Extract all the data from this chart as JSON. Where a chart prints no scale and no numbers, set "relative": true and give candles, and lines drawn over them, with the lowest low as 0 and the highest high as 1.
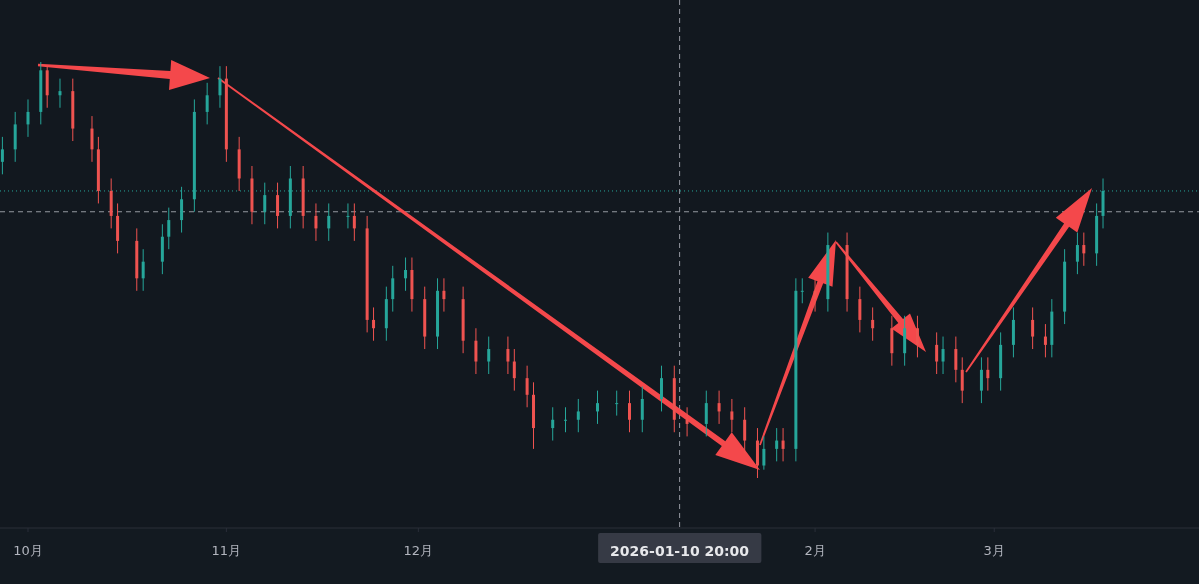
{
  "chart_data": {
    "type": "candlestick",
    "relative": true,
    "x": [
      "2025-09-27",
      "2025-09-29",
      "2025-10-01",
      "2025-10-03",
      "2025-10-04",
      "2025-10-06",
      "2025-10-08",
      "2025-10-11",
      "2025-10-12",
      "2025-10-14",
      "2025-10-15",
      "2025-10-18",
      "2025-10-19",
      "2025-10-22",
      "2025-10-23",
      "2025-10-25",
      "2025-10-27",
      "2025-10-29",
      "2025-10-31",
      "2025-11-01",
      "2025-11-03",
      "2025-11-05",
      "2025-11-07",
      "2025-11-09",
      "2025-11-11",
      "2025-11-13",
      "2025-11-15",
      "2025-11-17",
      "2025-11-20",
      "2025-11-21",
      "2025-11-23",
      "2025-11-24",
      "2025-11-26",
      "2025-11-27",
      "2025-11-29",
      "2025-11-30",
      "2025-12-02",
      "2025-12-04",
      "2025-12-05",
      "2025-12-08",
      "2025-12-10",
      "2025-12-12",
      "2025-12-15",
      "2025-12-16",
      "2025-12-18",
      "2025-12-19",
      "2025-12-22",
      "2025-12-24",
      "2025-12-26",
      "2025-12-29",
      "2026-01-01",
      "2026-01-03",
      "2026-01-05",
      "2026-01-08",
      "2026-01-10",
      "2026-01-12",
      "2026-01-15",
      "2026-01-17",
      "2026-01-19",
      "2026-01-21",
      "2026-01-23",
      "2026-01-24",
      "2026-01-26",
      "2026-01-27",
      "2026-01-29",
      "2026-01-30",
      "2026-02-01",
      "2026-02-03",
      "2026-02-06",
      "2026-02-08",
      "2026-02-10",
      "2026-02-13",
      "2026-02-15",
      "2026-02-17",
      "2026-02-20",
      "2026-02-21",
      "2026-02-23",
      "2026-02-24",
      "2026-02-27",
      "2026-02-28",
      "2026-03-02",
      "2026-03-04",
      "2026-03-07",
      "2026-03-09",
      "2026-03-10",
      "2026-03-12",
      "2026-03-14",
      "2026-03-15",
      "2026-03-17",
      "2026-03-18"
    ],
    "ohlc": [
      [
        0.76,
        0.82,
        0.73,
        0.79
      ],
      [
        0.79,
        0.88,
        0.76,
        0.85
      ],
      [
        0.85,
        0.91,
        0.82,
        0.88
      ],
      [
        0.88,
        1.0,
        0.85,
        0.98
      ],
      [
        0.98,
        0.99,
        0.89,
        0.92
      ],
      [
        0.92,
        0.96,
        0.89,
        0.93
      ],
      [
        0.93,
        0.96,
        0.81,
        0.84
      ],
      [
        0.84,
        0.87,
        0.76,
        0.79
      ],
      [
        0.79,
        0.82,
        0.66,
        0.69
      ],
      [
        0.69,
        0.72,
        0.6,
        0.63
      ],
      [
        0.63,
        0.66,
        0.54,
        0.57
      ],
      [
        0.57,
        0.6,
        0.45,
        0.48
      ],
      [
        0.48,
        0.55,
        0.45,
        0.52
      ],
      [
        0.52,
        0.61,
        0.49,
        0.58
      ],
      [
        0.58,
        0.65,
        0.55,
        0.62
      ],
      [
        0.62,
        0.7,
        0.59,
        0.67
      ],
      [
        0.67,
        0.91,
        0.64,
        0.88
      ],
      [
        0.88,
        0.95,
        0.85,
        0.92
      ],
      [
        0.92,
        0.99,
        0.89,
        0.96
      ],
      [
        0.96,
        0.99,
        0.76,
        0.79
      ],
      [
        0.79,
        0.82,
        0.69,
        0.72
      ],
      [
        0.72,
        0.75,
        0.61,
        0.64
      ],
      [
        0.64,
        0.71,
        0.61,
        0.68
      ],
      [
        0.68,
        0.71,
        0.6,
        0.63
      ],
      [
        0.63,
        0.75,
        0.6,
        0.72
      ],
      [
        0.72,
        0.75,
        0.6,
        0.63
      ],
      [
        0.63,
        0.66,
        0.57,
        0.6
      ],
      [
        0.6,
        0.66,
        0.57,
        0.63
      ],
      [
        0.63,
        0.66,
        0.6,
        0.63
      ],
      [
        0.63,
        0.66,
        0.57,
        0.6
      ],
      [
        0.6,
        0.63,
        0.35,
        0.38
      ],
      [
        0.38,
        0.41,
        0.33,
        0.36
      ],
      [
        0.36,
        0.46,
        0.33,
        0.43
      ],
      [
        0.43,
        0.51,
        0.4,
        0.48
      ],
      [
        0.48,
        0.53,
        0.45,
        0.5
      ],
      [
        0.5,
        0.53,
        0.4,
        0.43
      ],
      [
        0.43,
        0.46,
        0.31,
        0.34
      ],
      [
        0.34,
        0.48,
        0.31,
        0.45
      ],
      [
        0.45,
        0.48,
        0.4,
        0.43
      ],
      [
        0.43,
        0.46,
        0.3,
        0.33
      ],
      [
        0.33,
        0.36,
        0.25,
        0.28
      ],
      [
        0.28,
        0.34,
        0.25,
        0.31
      ],
      [
        0.31,
        0.34,
        0.25,
        0.28
      ],
      [
        0.28,
        0.31,
        0.21,
        0.24
      ],
      [
        0.24,
        0.27,
        0.17,
        0.2
      ],
      [
        0.2,
        0.23,
        0.07,
        0.12
      ],
      [
        0.12,
        0.17,
        0.09,
        0.14
      ],
      [
        0.14,
        0.17,
        0.11,
        0.14
      ],
      [
        0.14,
        0.19,
        0.11,
        0.16
      ],
      [
        0.16,
        0.21,
        0.13,
        0.18
      ],
      [
        0.18,
        0.21,
        0.15,
        0.18
      ],
      [
        0.18,
        0.21,
        0.11,
        0.14
      ],
      [
        0.14,
        0.22,
        0.11,
        0.19
      ],
      [
        0.19,
        0.27,
        0.16,
        0.24
      ],
      [
        0.24,
        0.27,
        0.11,
        0.14
      ],
      [
        0.14,
        0.17,
        0.1,
        0.13
      ],
      [
        0.13,
        0.21,
        0.1,
        0.18
      ],
      [
        0.18,
        0.21,
        0.13,
        0.16
      ],
      [
        0.16,
        0.19,
        0.11,
        0.14
      ],
      [
        0.14,
        0.17,
        0.06,
        0.09
      ],
      [
        0.09,
        0.12,
        0.0,
        0.03
      ],
      [
        0.03,
        0.1,
        0.02,
        0.07
      ],
      [
        0.07,
        0.12,
        0.04,
        0.09
      ],
      [
        0.09,
        0.12,
        0.04,
        0.07
      ],
      [
        0.07,
        0.48,
        0.04,
        0.45
      ],
      [
        0.45,
        0.48,
        0.42,
        0.45
      ],
      [
        0.45,
        0.48,
        0.4,
        0.43
      ],
      [
        0.43,
        0.59,
        0.4,
        0.56
      ],
      [
        0.56,
        0.59,
        0.4,
        0.43
      ],
      [
        0.43,
        0.46,
        0.35,
        0.38
      ],
      [
        0.38,
        0.41,
        0.33,
        0.36
      ],
      [
        0.36,
        0.39,
        0.27,
        0.3
      ],
      [
        0.3,
        0.39,
        0.27,
        0.36
      ],
      [
        0.36,
        0.39,
        0.29,
        0.32
      ],
      [
        0.32,
        0.35,
        0.25,
        0.28
      ],
      [
        0.28,
        0.34,
        0.25,
        0.31
      ],
      [
        0.31,
        0.34,
        0.23,
        0.26
      ],
      [
        0.26,
        0.29,
        0.18,
        0.21
      ],
      [
        0.21,
        0.29,
        0.18,
        0.26
      ],
      [
        0.26,
        0.29,
        0.21,
        0.24
      ],
      [
        0.24,
        0.35,
        0.21,
        0.32
      ],
      [
        0.32,
        0.41,
        0.29,
        0.38
      ],
      [
        0.38,
        0.41,
        0.31,
        0.34
      ],
      [
        0.34,
        0.37,
        0.29,
        0.32
      ],
      [
        0.32,
        0.43,
        0.29,
        0.4
      ],
      [
        0.4,
        0.55,
        0.37,
        0.52
      ],
      [
        0.52,
        0.59,
        0.49,
        0.56
      ],
      [
        0.56,
        0.59,
        0.51,
        0.54
      ],
      [
        0.54,
        0.66,
        0.51,
        0.63
      ],
      [
        0.63,
        0.72,
        0.6,
        0.69
      ]
    ],
    "xlim": [
      "2025-09-26T15:00",
      "2026-04-02"
    ],
    "xticks": [
      {
        "value": "2025-10-01",
        "label": "10月"
      },
      {
        "value": "2025-11-01",
        "label": "11月"
      },
      {
        "value": "2025-12-01",
        "label": "12月"
      },
      {
        "value": "2026-02-01",
        "label": "2月"
      },
      {
        "value": "2026-03-01",
        "label": "3月"
      }
    ],
    "ref_lines": [
      {
        "axis": "x",
        "value": "2026-01-10T20:00",
        "label": "2026-01-10 20:00",
        "color": "#9598a1",
        "line_style": "dashed"
      },
      {
        "axis": "y",
        "value": 0.64,
        "color": "#9598a1",
        "line_style": "dashed"
      },
      {
        "axis": "y",
        "value": 0.69,
        "color": "#26a69a",
        "line_style": "dotted"
      }
    ]
  }
}
